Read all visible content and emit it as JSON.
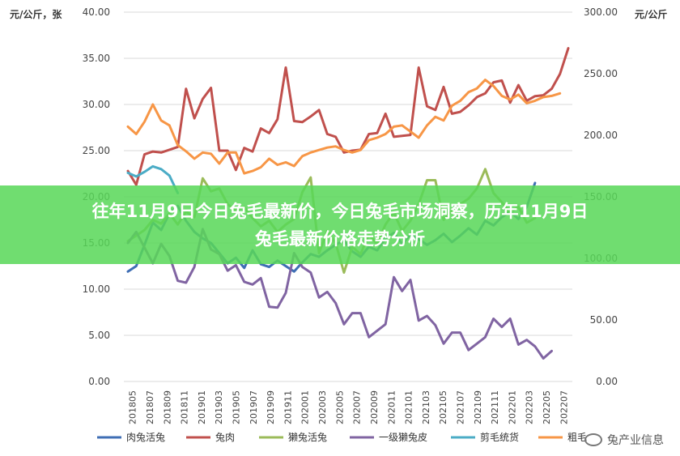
{
  "banner": {
    "line1": "往年11月9日今日兔毛最新价，今日兔毛市场洞察，历年11月9日",
    "line2": "兔毛最新价格走势分析"
  },
  "watermark": {
    "text": "兔产业信息",
    "icon": "wechat-icon"
  },
  "chart_data": {
    "type": "line",
    "left_unit": "元/公斤，张",
    "right_unit": "元/公斤",
    "left_axis": {
      "min": 0,
      "max": 40,
      "ticks": [
        "0.00",
        "5.00",
        "10.00",
        "15.00",
        "20.00",
        "25.00",
        "30.00",
        "35.00",
        "40.00"
      ]
    },
    "right_axis": {
      "min": 0,
      "max": 300,
      "ticks": [
        "0.00",
        "50.00",
        "100.00",
        "150.00",
        "200.00",
        "250.00",
        "300.00"
      ]
    },
    "x_labels": [
      "201805",
      "201807",
      "201809",
      "201811",
      "201901",
      "201903",
      "201905",
      "201907",
      "201909",
      "201911",
      "202001",
      "202003",
      "202005",
      "202007",
      "202009",
      "202011",
      "202101",
      "202103",
      "202105",
      "202107",
      "202109",
      "202111",
      "202201",
      "202203",
      "202205",
      "202207"
    ],
    "series": [
      {
        "name": "肉兔活兔",
        "color": "#3f6eb4",
        "axis": "left",
        "values": [
          11.9,
          12.5,
          14.8,
          17.2,
          16.4,
          18.2,
          19.0,
          17.4,
          16.2,
          15.5,
          15.0,
          13.9,
          12.8,
          13.4,
          12.3,
          14.2,
          12.7,
          12.4,
          13.1,
          12.5,
          11.9,
          12.9,
          13.8,
          13.5,
          14.2,
          14.8,
          15.3,
          14.1,
          13.5,
          14.6,
          14.2,
          15.5,
          16.1,
          14.9,
          15.9,
          15.4,
          14.8,
          15.3,
          16.0,
          15.1,
          15.8,
          16.6,
          15.9,
          17.4,
          16.9,
          17.8,
          18.4,
          17.6,
          18.9,
          21.5
        ]
      },
      {
        "name": "兔肉",
        "color": "#c0504d",
        "axis": "left",
        "values": [
          22.8,
          21.3,
          24.6,
          24.9,
          24.8,
          25.1,
          25.4,
          31.7,
          28.5,
          30.6,
          31.8,
          25.0,
          25.0,
          22.9,
          25.3,
          24.9,
          27.4,
          26.9,
          28.4,
          34.0,
          28.2,
          28.1,
          28.7,
          29.4,
          26.8,
          26.5,
          24.8,
          25.0,
          25.1,
          26.8,
          26.9,
          29.0,
          26.5,
          26.6,
          26.7,
          34.0,
          29.8,
          29.4,
          31.9,
          29.0,
          29.2,
          29.9,
          30.8,
          31.2,
          32.4,
          32.6,
          30.2,
          32.1,
          30.4,
          30.9,
          31.0,
          31.7,
          33.3,
          36.1
        ]
      },
      {
        "name": "獭兔活兔",
        "color": "#9bbb59",
        "axis": "left",
        "values": [
          15.2,
          15.8,
          16.4,
          17.5,
          17.1,
          18.2,
          17.0,
          18.4,
          17.8,
          22.0,
          20.6,
          20.9,
          19.2,
          18.5,
          18.9,
          17.7,
          16.8,
          17.4,
          16.2,
          17.0,
          17.6,
          20.5,
          22.1,
          13.9,
          16.3,
          15.0,
          11.8,
          14.6,
          13.8,
          15.9,
          14.9,
          17.0,
          18.3,
          16.3,
          17.4,
          19.2,
          21.8,
          21.8,
          17.5,
          18.5,
          19.2,
          19.8,
          20.9,
          23.0,
          20.4,
          19.4,
          18.3,
          18.9,
          17.2,
          17.7
        ]
      },
      {
        "name": "一级獭兔皮",
        "color": "#8064a2",
        "axis": "left",
        "values": [
          15.0,
          16.2,
          14.5,
          12.8,
          14.9,
          13.6,
          10.9,
          10.7,
          12.4,
          16.5,
          14.3,
          13.8,
          12.0,
          12.6,
          10.8,
          10.5,
          11.2,
          8.1,
          8.0,
          9.6,
          13.9,
          12.4,
          11.8,
          9.1,
          9.7,
          8.5,
          6.2,
          7.4,
          7.4,
          4.8,
          5.5,
          6.2,
          11.3,
          9.8,
          11.0,
          6.6,
          7.1,
          6.1,
          4.1,
          5.3,
          5.3,
          3.4,
          4.1,
          4.8,
          6.8,
          5.9,
          6.8,
          4.0,
          4.5,
          3.8,
          2.5,
          3.3
        ]
      },
      {
        "name": "剪毛统货",
        "color": "#4bacc6",
        "axis": "left",
        "values": [
          22.6,
          22.2,
          22.7,
          23.3,
          23.0,
          22.3,
          20.4
        ]
      },
      {
        "name": "粗毛",
        "color": "#f79646",
        "axis": "right",
        "values": [
          207,
          201,
          211,
          225,
          212,
          208,
          192,
          187,
          181,
          186,
          185,
          177,
          186,
          186,
          169,
          171,
          174,
          181,
          176,
          178,
          175,
          183,
          186,
          188,
          190,
          191,
          188,
          186,
          188,
          196,
          198,
          201,
          207,
          208,
          203,
          198,
          208,
          215,
          212,
          224,
          228,
          235,
          238,
          245,
          240,
          232,
          229,
          233,
          226,
          228,
          231,
          232,
          234
        ]
      }
    ]
  }
}
